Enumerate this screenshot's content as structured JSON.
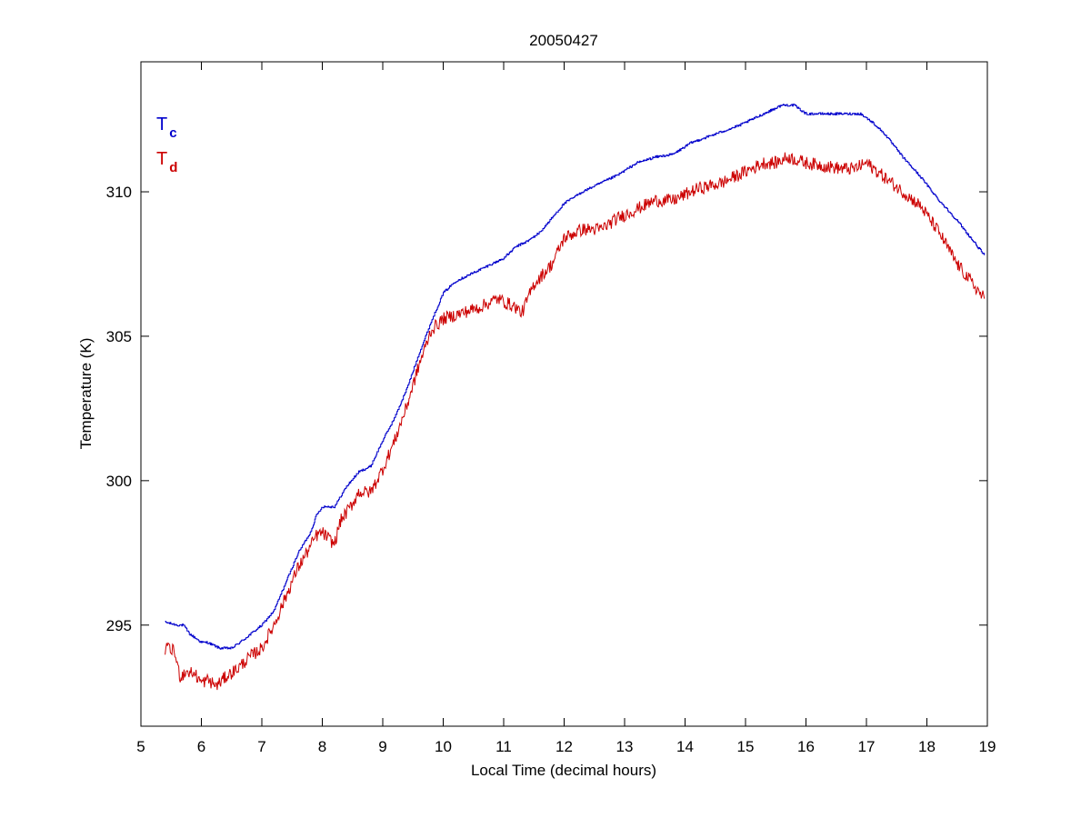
{
  "chart_data": {
    "type": "line",
    "title": "20050427",
    "xlabel": "Local Time (decimal hours)",
    "ylabel": "Temperature (K)",
    "xlim": [
      5,
      19
    ],
    "ylim": [
      291.5,
      314.5
    ],
    "xticks": [
      5,
      6,
      7,
      8,
      9,
      10,
      11,
      12,
      13,
      14,
      15,
      16,
      17,
      18,
      19
    ],
    "yticks": [
      295,
      300,
      305,
      310
    ],
    "grid": false,
    "legend_position": "top-left",
    "series": [
      {
        "name": "Tc",
        "legend_main": "T",
        "legend_sub": "c",
        "color": "#0000cc",
        "x": [
          5.4,
          5.6,
          5.7,
          5.8,
          6.0,
          6.1,
          6.3,
          6.5,
          6.7,
          7.0,
          7.2,
          7.4,
          7.6,
          7.8,
          7.9,
          8.0,
          8.2,
          8.4,
          8.6,
          8.8,
          9.0,
          9.2,
          9.4,
          9.6,
          9.8,
          10.0,
          10.2,
          10.5,
          10.8,
          11.0,
          11.2,
          11.4,
          11.6,
          11.8,
          12.0,
          12.3,
          12.6,
          12.9,
          13.2,
          13.5,
          13.8,
          14.1,
          14.5,
          14.9,
          15.2,
          15.4,
          15.6,
          15.8,
          16.0,
          16.3,
          16.6,
          16.9,
          17.1,
          17.3,
          17.6,
          17.9,
          18.2,
          18.5,
          18.8,
          18.95
        ],
        "y": [
          295.1,
          295.0,
          295.0,
          294.7,
          294.4,
          294.4,
          294.2,
          294.2,
          294.5,
          295.0,
          295.5,
          296.5,
          297.5,
          298.2,
          298.8,
          299.1,
          299.1,
          299.8,
          300.3,
          300.5,
          301.4,
          302.2,
          303.2,
          304.4,
          305.5,
          306.5,
          306.9,
          307.2,
          307.5,
          307.7,
          308.1,
          308.3,
          308.6,
          309.1,
          309.6,
          310.0,
          310.3,
          310.6,
          311.0,
          311.2,
          311.3,
          311.7,
          312.0,
          312.3,
          312.6,
          312.8,
          313.0,
          313.0,
          312.7,
          312.7,
          312.7,
          312.7,
          312.4,
          312.0,
          311.2,
          310.5,
          309.7,
          309.0,
          308.2,
          307.8
        ]
      },
      {
        "name": "Td",
        "legend_main": "T",
        "legend_sub": "d",
        "color": "#cc0000",
        "x": [
          5.4,
          5.55,
          5.65,
          5.75,
          5.9,
          6.0,
          6.1,
          6.25,
          6.4,
          6.6,
          6.8,
          7.0,
          7.2,
          7.4,
          7.6,
          7.8,
          7.9,
          8.0,
          8.2,
          8.3,
          8.5,
          8.6,
          8.8,
          9.0,
          9.2,
          9.4,
          9.6,
          9.8,
          10.0,
          10.3,
          10.6,
          10.9,
          11.0,
          11.2,
          11.3,
          11.5,
          11.8,
          12.0,
          12.3,
          12.6,
          12.9,
          13.2,
          13.5,
          13.8,
          14.2,
          14.6,
          15.0,
          15.3,
          15.5,
          15.7,
          16.0,
          16.3,
          16.6,
          16.8,
          17.0,
          17.3,
          17.6,
          17.9,
          18.2,
          18.5,
          18.8,
          18.95
        ],
        "y": [
          294.2,
          294.1,
          293.2,
          293.4,
          293.3,
          293.0,
          293.1,
          292.9,
          293.2,
          293.5,
          293.9,
          294.2,
          295.0,
          296.0,
          297.0,
          297.7,
          298.1,
          298.2,
          297.8,
          298.6,
          299.2,
          299.6,
          299.6,
          300.4,
          301.4,
          302.6,
          304.0,
          305.2,
          305.6,
          305.8,
          306.0,
          306.3,
          306.2,
          306.0,
          305.8,
          306.8,
          307.5,
          308.4,
          308.7,
          308.7,
          309.1,
          309.4,
          309.7,
          309.7,
          310.1,
          310.3,
          310.7,
          311.0,
          311.0,
          311.2,
          311.0,
          310.9,
          310.8,
          310.8,
          311.0,
          310.5,
          310.0,
          309.5,
          308.6,
          307.5,
          306.7,
          306.3
        ]
      }
    ]
  }
}
